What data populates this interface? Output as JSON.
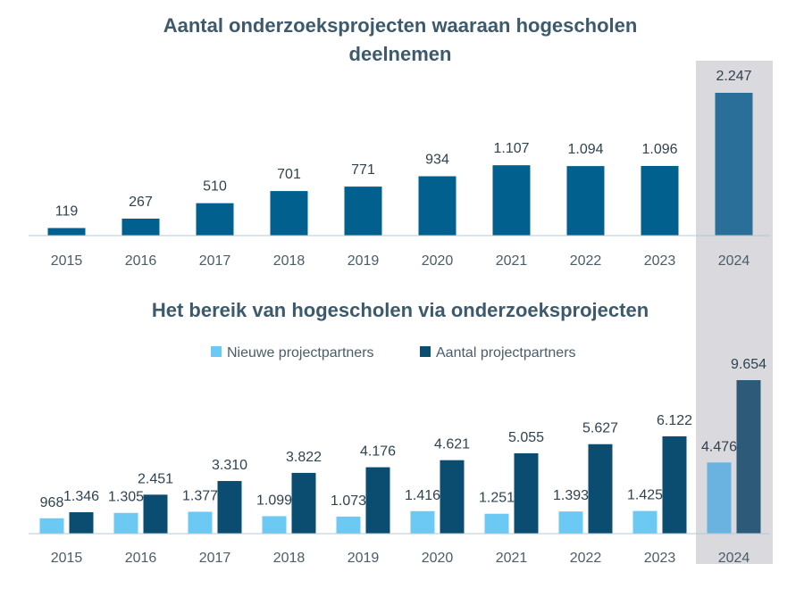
{
  "colors": {
    "highlight_band": "#d9d9de",
    "axis_line": "#b7c9d6",
    "chart1_bar": "#02608f",
    "chart1_bar_highlight": "#2a6f99",
    "new_partners": "#6cc9f3",
    "new_partners_highlight": "#6ab3e0",
    "total_partners": "#0b4d70",
    "total_partners_highlight": "#2d5a78"
  },
  "chart_data": [
    {
      "type": "bar",
      "title": "Aantal onderzoeksprojecten waaraan hogescholen deelnemen",
      "categories": [
        "2015",
        "2016",
        "2017",
        "2018",
        "2019",
        "2020",
        "2021",
        "2022",
        "2023",
        "2024"
      ],
      "values": [
        119,
        267,
        510,
        701,
        771,
        934,
        1107,
        1094,
        1096,
        2247
      ],
      "value_labels": [
        "119",
        "267",
        "510",
        "701",
        "771",
        "934",
        "1.107",
        "1.094",
        "1.096",
        "2.247"
      ],
      "highlighted_category": "2024",
      "grid": false,
      "ylim": [
        0,
        2247
      ]
    },
    {
      "type": "bar",
      "title": "Het bereik van hogescholen via onderzoeksprojecten",
      "categories": [
        "2015",
        "2016",
        "2017",
        "2018",
        "2019",
        "2020",
        "2021",
        "2022",
        "2023",
        "2024"
      ],
      "legend_position": "top-center",
      "highlighted_category": "2024",
      "grid": false,
      "ylim": [
        0,
        9654
      ],
      "series": [
        {
          "name": "Nieuwe projectpartners",
          "values": [
            968,
            1305,
            1377,
            1099,
            1073,
            1416,
            1251,
            1393,
            1425,
            4476
          ],
          "value_labels": [
            "968",
            "1.305",
            "1.377",
            "1.099",
            "1.073",
            "1.416",
            "1.251",
            "1.393",
            "1.425",
            "4.476"
          ]
        },
        {
          "name": "Aantal projectpartners",
          "values": [
            1346,
            2451,
            3310,
            3822,
            4176,
            4621,
            5055,
            5627,
            6122,
            9654
          ],
          "value_labels": [
            "1.346",
            "2.451",
            "3.310",
            "3.822",
            "4.176",
            "4.621",
            "5.055",
            "5.627",
            "6.122",
            "9.654"
          ]
        }
      ]
    }
  ]
}
